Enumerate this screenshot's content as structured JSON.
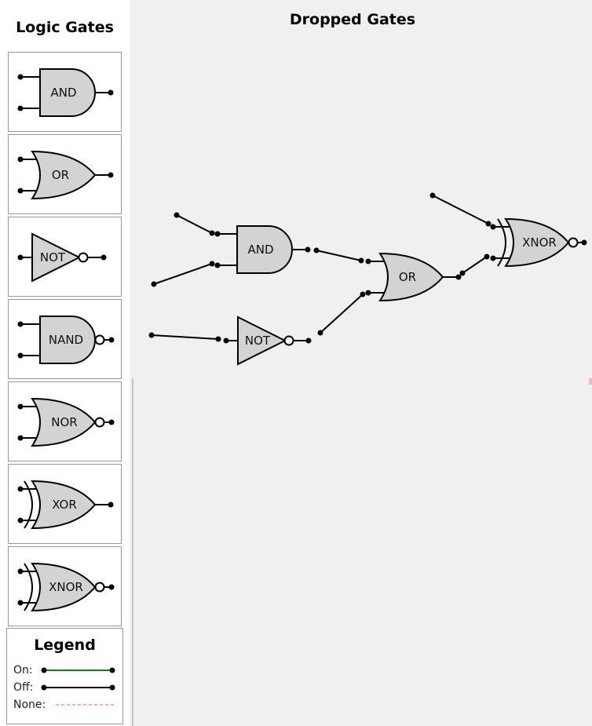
{
  "sidebar": {
    "title": "Logic Gates",
    "gates": [
      {
        "label": "AND",
        "kind": "and"
      },
      {
        "label": "OR",
        "kind": "or"
      },
      {
        "label": "NOT",
        "kind": "not"
      },
      {
        "label": "NAND",
        "kind": "nand"
      },
      {
        "label": "NOR",
        "kind": "nor"
      },
      {
        "label": "XOR",
        "kind": "xor"
      },
      {
        "label": "XNOR",
        "kind": "xnor"
      }
    ]
  },
  "legend": {
    "title": "Legend",
    "on_label": "On:",
    "off_label": "Off:",
    "none_label": "None:",
    "on_color": "#1a7a1a",
    "off_color": "#000000",
    "none_color": "#f08080"
  },
  "canvas": {
    "title": "Dropped Gates",
    "gates": [
      {
        "label": "AND",
        "kind": "and"
      },
      {
        "label": "NOT",
        "kind": "not"
      },
      {
        "label": "OR",
        "kind": "or"
      },
      {
        "label": "XNOR",
        "kind": "xnor"
      }
    ]
  },
  "colors": {
    "gate_fill": "#d3d3d3",
    "canvas_bg": "#f0f0f0"
  }
}
